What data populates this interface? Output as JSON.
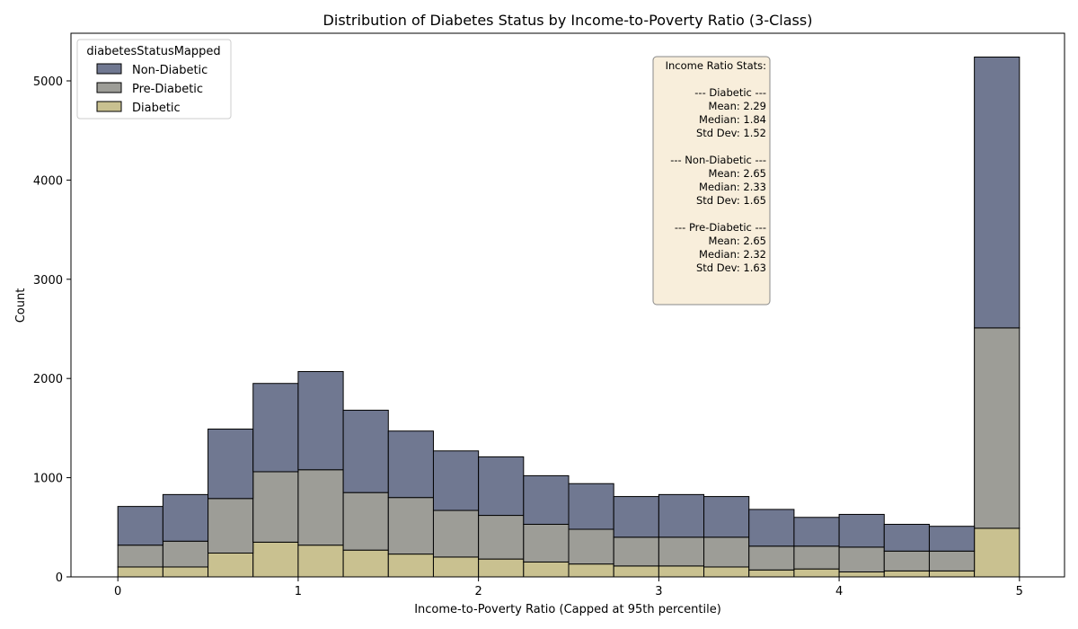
{
  "chart_data": {
    "type": "bar",
    "stacked": true,
    "title": "Distribution of Diabetes Status by Income-to-Poverty Ratio (3-Class)",
    "xlabel": "Income-to-Poverty Ratio (Capped at 95th percentile)",
    "ylabel": "Count",
    "xlim": [
      -0.26,
      5.25
    ],
    "ylim": [
      0,
      5480
    ],
    "xticks": [
      0,
      1,
      2,
      3,
      4,
      5
    ],
    "yticks": [
      0,
      1000,
      2000,
      3000,
      4000,
      5000
    ],
    "bin_edges": [
      0,
      0.25,
      0.5,
      0.75,
      1.0,
      1.25,
      1.5,
      1.75,
      2.0,
      2.25,
      2.5,
      2.75,
      3.0,
      3.25,
      3.5,
      3.75,
      4.0,
      4.25,
      4.5,
      4.75,
      5.0
    ],
    "series": [
      {
        "name": "Diabetic",
        "color": "#c9c190",
        "values": [
          100,
          100,
          240,
          350,
          320,
          270,
          230,
          200,
          180,
          150,
          130,
          110,
          110,
          100,
          70,
          80,
          50,
          60,
          60,
          490
        ]
      },
      {
        "name": "Pre-Diabetic",
        "color": "#9d9d97",
        "values": [
          220,
          260,
          550,
          710,
          760,
          580,
          570,
          470,
          440,
          380,
          350,
          290,
          290,
          300,
          240,
          230,
          250,
          200,
          200,
          2020
        ]
      },
      {
        "name": "Non-Diabetic",
        "color": "#707891",
        "values": [
          390,
          470,
          700,
          890,
          990,
          830,
          670,
          600,
          590,
          490,
          460,
          410,
          430,
          410,
          370,
          290,
          330,
          270,
          250,
          2730
        ]
      }
    ],
    "legend": {
      "title": "diabetesStatusMapped",
      "position": "top-left",
      "items": [
        {
          "label": "Non-Diabetic",
          "color": "#707891"
        },
        {
          "label": "Pre-Diabetic",
          "color": "#9d9d97"
        },
        {
          "label": "Diabetic",
          "color": "#c9c190"
        }
      ]
    },
    "stats_box": {
      "lines": [
        "Income Ratio Stats:",
        "",
        "--- Diabetic ---",
        "Mean: 2.29",
        "Median: 1.84",
        "Std Dev: 1.52",
        "",
        "--- Non-Diabetic ---",
        "Mean: 2.65",
        "Median: 2.33",
        "Std Dev: 1.65",
        "",
        "--- Pre-Diabetic ---",
        "Mean: 2.65",
        "Median: 2.32",
        "Std Dev: 1.63"
      ],
      "background": "#f8eedb"
    }
  }
}
